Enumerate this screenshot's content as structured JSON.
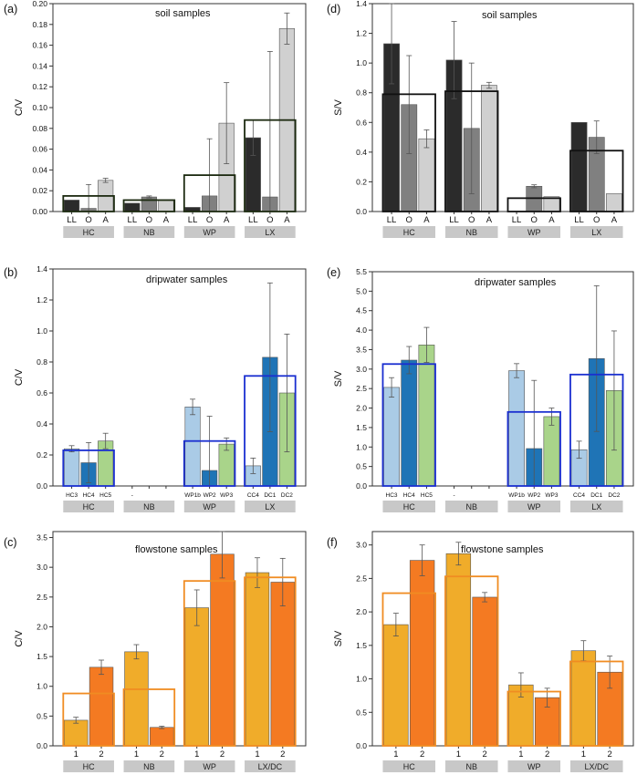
{
  "chart_data": [
    {
      "panel": "(a)",
      "type": "bar",
      "title": "soil samples",
      "ylabel": "C/V",
      "ylim": [
        0,
        0.2
      ],
      "yticks": [
        0,
        0.02,
        0.04,
        0.06,
        0.08,
        0.1,
        0.12,
        0.14,
        0.16,
        0.18,
        0.2
      ],
      "ydec": 2,
      "groups": [
        "HC",
        "NB",
        "WP",
        "LX"
      ],
      "bars": [
        {
          "label": "LL",
          "value": 0.011,
          "err": null,
          "color": "#2b2b2b"
        },
        {
          "label": "O",
          "value": 0.003,
          "err": 0.023,
          "color": "#808080"
        },
        {
          "label": "A",
          "value": 0.03,
          "err": 0.002,
          "color": "#d0d0d0"
        },
        {
          "label": "LL",
          "value": 0.008,
          "err": null,
          "color": "#2b2b2b"
        },
        {
          "label": "O",
          "value": 0.014,
          "err": 0.001,
          "color": "#808080"
        },
        {
          "label": "A",
          "value": 0.011,
          "err": null,
          "color": "#d0d0d0"
        },
        {
          "label": "LL",
          "value": 0.004,
          "err": null,
          "color": "#2b2b2b"
        },
        {
          "label": "O",
          "value": 0.015,
          "err": 0.055,
          "color": "#808080"
        },
        {
          "label": "A",
          "value": 0.085,
          "err": 0.039,
          "color": "#d0d0d0"
        },
        {
          "label": "LL",
          "value": 0.071,
          "err": 0.017,
          "color": "#2b2b2b"
        },
        {
          "label": "O",
          "value": 0.014,
          "err": 0.14,
          "color": "#808080"
        },
        {
          "label": "A",
          "value": 0.176,
          "err": 0.015,
          "color": "#d0d0d0"
        }
      ],
      "means": [
        0.015,
        0.011,
        0.035,
        0.088
      ],
      "mean_color": "#1c2a10"
    },
    {
      "panel": "(d)",
      "type": "bar",
      "title": "soil samples",
      "ylabel": "S/V",
      "ylim": [
        0,
        1.4
      ],
      "yticks": [
        0,
        0.2,
        0.4,
        0.6,
        0.8,
        1.0,
        1.2,
        1.4
      ],
      "ydec": 1,
      "groups": [
        "HC",
        "NB",
        "WP",
        "LX"
      ],
      "bars": [
        {
          "label": "LL",
          "value": 1.13,
          "err": 0.27,
          "color": "#2b2b2b"
        },
        {
          "label": "O",
          "value": 0.72,
          "err": 0.33,
          "color": "#808080"
        },
        {
          "label": "A",
          "value": 0.49,
          "err": 0.06,
          "color": "#d0d0d0"
        },
        {
          "label": "LL",
          "value": 1.02,
          "err": 0.26,
          "color": "#2b2b2b"
        },
        {
          "label": "O",
          "value": 0.56,
          "err": 0.44,
          "color": "#808080"
        },
        {
          "label": "A",
          "value": 0.85,
          "err": 0.02,
          "color": "#d0d0d0"
        },
        {
          "label": "LL",
          "value": 0.0,
          "err": null,
          "color": "#2b2b2b"
        },
        {
          "label": "O",
          "value": 0.17,
          "err": 0.01,
          "color": "#808080"
        },
        {
          "label": "A",
          "value": 0.1,
          "err": null,
          "color": "#d0d0d0"
        },
        {
          "label": "LL",
          "value": 0.6,
          "err": null,
          "color": "#2b2b2b"
        },
        {
          "label": "O",
          "value": 0.5,
          "err": 0.11,
          "color": "#808080"
        },
        {
          "label": "A",
          "value": 0.12,
          "err": null,
          "color": "#d0d0d0"
        }
      ],
      "means": [
        0.79,
        0.81,
        0.09,
        0.41
      ],
      "mean_color": "#111111"
    },
    {
      "panel": "(b)",
      "type": "bar",
      "title": "dripwater samples",
      "ylabel": "C/V",
      "ylim": [
        0,
        1.4
      ],
      "yticks": [
        0,
        0.2,
        0.4,
        0.6,
        0.8,
        1.0,
        1.2,
        1.4
      ],
      "ydec": 1,
      "groups": [
        "HC",
        "NB",
        "WP",
        "LX"
      ],
      "small_labels": true,
      "bars": [
        {
          "label": "HC3",
          "value": 0.24,
          "err": 0.02,
          "color": "#aacbe6"
        },
        {
          "label": "HC4",
          "value": 0.15,
          "err": 0.13,
          "color": "#1f74b6"
        },
        {
          "label": "HC5",
          "value": 0.29,
          "err": 0.05,
          "color": "#a9d48a"
        },
        {
          "label": "-",
          "value": null,
          "err": null,
          "color": "#ffffff"
        },
        {
          "label": "",
          "value": null,
          "err": null,
          "color": "#ffffff"
        },
        {
          "label": "",
          "value": null,
          "err": null,
          "color": "#ffffff"
        },
        {
          "label": "WP1b",
          "value": 0.51,
          "err": 0.05,
          "color": "#aacbe6"
        },
        {
          "label": "WP2",
          "value": 0.1,
          "err": 0.35,
          "color": "#1f74b6"
        },
        {
          "label": "WP3",
          "value": 0.27,
          "err": 0.04,
          "color": "#a9d48a"
        },
        {
          "label": "CC4",
          "value": 0.13,
          "err": 0.05,
          "color": "#aacbe6"
        },
        {
          "label": "DC1",
          "value": 0.83,
          "err": 0.48,
          "color": "#1f74b6"
        },
        {
          "label": "DC2",
          "value": 0.6,
          "err": 0.38,
          "color": "#a9d48a"
        }
      ],
      "means": [
        0.23,
        null,
        0.29,
        0.71
      ],
      "mean_color": "#1a2fd0"
    },
    {
      "panel": "(e)",
      "type": "bar",
      "title": "dripwater samples",
      "ylabel": "S/V",
      "ylim": [
        0,
        5.5
      ],
      "yticks": [
        0,
        0.5,
        1.0,
        1.5,
        2.0,
        2.5,
        3.0,
        3.5,
        4.0,
        4.5,
        5.0,
        5.5
      ],
      "ydec": 1,
      "groups": [
        "HC",
        "NB",
        "WP",
        "LX"
      ],
      "small_labels": true,
      "bars": [
        {
          "label": "HC3",
          "value": 2.53,
          "err": 0.25,
          "color": "#aacbe6"
        },
        {
          "label": "HC4",
          "value": 3.23,
          "err": 0.35,
          "color": "#1f74b6"
        },
        {
          "label": "HC5",
          "value": 3.62,
          "err": 0.45,
          "color": "#a9d48a"
        },
        {
          "label": "-",
          "value": null,
          "err": null,
          "color": "#ffffff"
        },
        {
          "label": "",
          "value": null,
          "err": null,
          "color": "#ffffff"
        },
        {
          "label": "",
          "value": null,
          "err": null,
          "color": "#ffffff"
        },
        {
          "label": "WP1b",
          "value": 2.96,
          "err": 0.18,
          "color": "#aacbe6"
        },
        {
          "label": "WP2",
          "value": 0.96,
          "err": 1.75,
          "color": "#1f74b6"
        },
        {
          "label": "WP3",
          "value": 1.78,
          "err": 0.22,
          "color": "#a9d48a"
        },
        {
          "label": "CC4",
          "value": 0.93,
          "err": 0.22,
          "color": "#aacbe6"
        },
        {
          "label": "DC1",
          "value": 3.27,
          "err": 1.87,
          "color": "#1f74b6"
        },
        {
          "label": "DC2",
          "value": 2.45,
          "err": 1.53,
          "color": "#a9d48a"
        }
      ],
      "means": [
        3.13,
        null,
        1.9,
        2.86
      ],
      "mean_color": "#1a2fd0"
    },
    {
      "panel": "(c)",
      "type": "bar",
      "title": "flowstone samples",
      "ylabel": "C/V",
      "ylim": [
        0,
        3.6
      ],
      "yticks": [
        0,
        0.5,
        1.0,
        1.5,
        2.0,
        2.5,
        3.0,
        3.5
      ],
      "ydec": 1,
      "groups": [
        "HC",
        "NB",
        "WP",
        "LX/DC"
      ],
      "per_group": 2,
      "bars": [
        {
          "label": "1",
          "value": 0.43,
          "err": 0.05,
          "color": "#f0ac2a"
        },
        {
          "label": "2",
          "value": 1.32,
          "err": 0.12,
          "color": "#f47a22"
        },
        {
          "label": "1",
          "value": 1.58,
          "err": 0.12,
          "color": "#f0ac2a"
        },
        {
          "label": "2",
          "value": 0.31,
          "err": 0.02,
          "color": "#f47a22"
        },
        {
          "label": "1",
          "value": 2.32,
          "err": 0.3,
          "color": "#f0ac2a"
        },
        {
          "label": "2",
          "value": 3.22,
          "err": 0.4,
          "color": "#f47a22"
        },
        {
          "label": "1",
          "value": 2.91,
          "err": 0.25,
          "color": "#f0ac2a"
        },
        {
          "label": "2",
          "value": 2.75,
          "err": 0.4,
          "color": "#f47a22"
        }
      ],
      "means": [
        0.88,
        0.95,
        2.77,
        2.83
      ],
      "mean_color": "#f08c22"
    },
    {
      "panel": "(f)",
      "type": "bar",
      "title": "flowstone samples",
      "ylabel": "S/V",
      "ylim": [
        0,
        3.2
      ],
      "yticks": [
        0,
        0.5,
        1.0,
        1.5,
        2.0,
        2.5,
        3.0
      ],
      "ydec": 1,
      "groups": [
        "HC",
        "NB",
        "WP",
        "LX/DC"
      ],
      "per_group": 2,
      "bars": [
        {
          "label": "1",
          "value": 1.81,
          "err": 0.17,
          "color": "#f0ac2a"
        },
        {
          "label": "2",
          "value": 2.77,
          "err": 0.23,
          "color": "#f47a22"
        },
        {
          "label": "1",
          "value": 2.87,
          "err": 0.17,
          "color": "#f0ac2a"
        },
        {
          "label": "2",
          "value": 2.22,
          "err": 0.07,
          "color": "#f47a22"
        },
        {
          "label": "1",
          "value": 0.91,
          "err": 0.18,
          "color": "#f0ac2a"
        },
        {
          "label": "2",
          "value": 0.72,
          "err": 0.14,
          "color": "#f47a22"
        },
        {
          "label": "1",
          "value": 1.42,
          "err": 0.15,
          "color": "#f0ac2a"
        },
        {
          "label": "2",
          "value": 1.1,
          "err": 0.24,
          "color": "#f47a22"
        }
      ],
      "means": [
        2.28,
        2.53,
        0.81,
        1.26
      ],
      "mean_color": "#f08c22"
    }
  ]
}
